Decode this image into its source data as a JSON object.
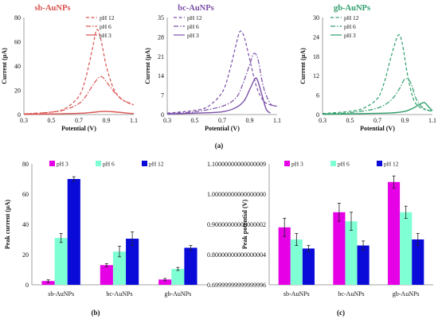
{
  "panel_labels": [
    "(a)",
    "(b)",
    "(c)"
  ],
  "chart_data": [
    {
      "type": "line",
      "title": "sb-AuNPs",
      "xlabel": "Potential (V)",
      "ylabel": "Current (μA)",
      "xlim": [
        0.3,
        1.1
      ],
      "ylim": [
        0,
        80
      ],
      "xticks": [
        0.3,
        0.5,
        0.7,
        0.9,
        1.1
      ],
      "yticks": [
        0,
        20,
        40,
        60,
        80
      ],
      "legend_position": "top-right",
      "color": "#d9534f",
      "series": [
        {
          "name": "pH 12",
          "dash": "dashed",
          "x": [
            0.3,
            0.5,
            0.6,
            0.7,
            0.75,
            0.8,
            0.83,
            0.86,
            0.9,
            0.95,
            1.0,
            1.05,
            1.1
          ],
          "y": [
            0.5,
            2,
            5,
            15,
            30,
            55,
            70,
            62,
            40,
            22,
            14,
            10,
            8
          ]
        },
        {
          "name": "pH 6",
          "dash": "dashdot",
          "x": [
            0.3,
            0.5,
            0.6,
            0.7,
            0.75,
            0.8,
            0.85,
            0.88,
            0.92,
            0.97,
            1.02,
            1.1
          ],
          "y": [
            0.5,
            2,
            4,
            9,
            15,
            24,
            31,
            30,
            24,
            17,
            12,
            8
          ]
        },
        {
          "name": "pH 3",
          "dash": "solid",
          "x": [
            0.3,
            0.5,
            0.7,
            0.8,
            0.86,
            0.9,
            0.95,
            1.0,
            1.05,
            1.1
          ],
          "y": [
            0.2,
            0.5,
            1,
            1.8,
            2.5,
            2.6,
            2.3,
            1.8,
            1.2,
            0.8
          ]
        }
      ]
    },
    {
      "type": "line",
      "title": "bc-AuNPs",
      "xlabel": "Potential (V)",
      "ylabel": "Current (μA)",
      "xlim": [
        0.3,
        1.1
      ],
      "ylim": [
        0,
        35
      ],
      "xticks": [
        0.3,
        0.5,
        0.7,
        0.9,
        1.1
      ],
      "yticks": [
        0,
        7,
        14,
        21,
        28,
        35
      ],
      "legend_position": "top-left",
      "color": "#7b4fa8",
      "series": [
        {
          "name": "pH 12",
          "dash": "dashed",
          "x": [
            0.3,
            0.5,
            0.6,
            0.7,
            0.75,
            0.8,
            0.83,
            0.86,
            0.9,
            0.95,
            1.0,
            1.05,
            1.1
          ],
          "y": [
            0.5,
            1.5,
            3,
            8,
            15,
            25,
            30,
            28,
            20,
            10,
            5,
            3.5,
            3
          ]
        },
        {
          "name": "pH 6",
          "dash": "dashdot",
          "x": [
            0.3,
            0.5,
            0.7,
            0.8,
            0.85,
            0.9,
            0.93,
            0.96,
            1.0,
            1.05,
            1.1
          ],
          "y": [
            0.3,
            1,
            3,
            6,
            11,
            18,
            22,
            20,
            10,
            4,
            3
          ]
        },
        {
          "name": "pH 3",
          "dash": "solid",
          "x": [
            0.3,
            0.5,
            0.7,
            0.8,
            0.86,
            0.9,
            0.94,
            0.96,
            0.99,
            1.02,
            1.05
          ],
          "y": [
            0.2,
            0.5,
            1,
            2.5,
            5,
            9,
            13,
            12,
            7,
            2,
            0.5
          ]
        }
      ]
    },
    {
      "type": "line",
      "title": "gb-AuNPs",
      "xlabel": "Potential (V)",
      "ylabel": "Current (μA)",
      "xlim": [
        0.3,
        1.1
      ],
      "ylim": [
        0,
        30
      ],
      "xticks": [
        0.3,
        0.5,
        0.7,
        0.9,
        1.1
      ],
      "yticks": [
        0,
        6,
        12,
        18,
        24,
        30
      ],
      "legend_position": "top-left",
      "color": "#2e9e6a",
      "series": [
        {
          "name": "pH 12",
          "dash": "dashed",
          "x": [
            0.3,
            0.5,
            0.6,
            0.7,
            0.75,
            0.8,
            0.85,
            0.88,
            0.92,
            0.96,
            1.0,
            1.05,
            1.1
          ],
          "y": [
            0.3,
            1,
            2,
            5,
            10,
            18,
            24.5,
            22,
            12,
            5,
            2.5,
            1.5,
            1
          ]
        },
        {
          "name": "pH 6",
          "dash": "dashdot",
          "x": [
            0.3,
            0.5,
            0.7,
            0.8,
            0.86,
            0.9,
            0.94,
            0.98,
            1.02,
            1.06,
            1.1
          ],
          "y": [
            0.2,
            0.6,
            2,
            4.5,
            8,
            11,
            10,
            5,
            2.5,
            1.5,
            1
          ]
        },
        {
          "name": "pH 3",
          "dash": "solid",
          "x": [
            0.3,
            0.6,
            0.8,
            0.9,
            0.96,
            1.0,
            1.04,
            1.07,
            1.1
          ],
          "y": [
            0.1,
            0.3,
            0.5,
            1,
            2,
            3,
            3.7,
            2.5,
            1.2
          ]
        }
      ]
    },
    {
      "type": "bar",
      "title": "",
      "xlabel": "",
      "ylabel": "Peak current (μA)",
      "ylim": [
        0,
        80
      ],
      "yticks": [
        0,
        20,
        40,
        60,
        80
      ],
      "categories": [
        "sb-AuNPs",
        "bc-AuNPs",
        "gb-AuNPs"
      ],
      "legend_position": "top",
      "error_bars": true,
      "series": [
        {
          "name": "pH 3",
          "color": "#e600e6",
          "values": [
            2.5,
            13,
            3.5
          ],
          "errors": [
            0.8,
            1,
            0.7
          ]
        },
        {
          "name": "pH 6",
          "color": "#7fffd4",
          "values": [
            31,
            22,
            10.5
          ],
          "errors": [
            3,
            3.5,
            1
          ]
        },
        {
          "name": "pH 12",
          "color": "#0a0ad9",
          "values": [
            70,
            30.5,
            24.5
          ],
          "errors": [
            1.5,
            4.5,
            1.5
          ]
        }
      ]
    },
    {
      "type": "bar",
      "title": "",
      "xlabel": "",
      "ylabel": "Peak potential (V)",
      "ylim": [
        0.7,
        1.1
      ],
      "yticks": [
        0.7,
        0.8,
        0.9,
        1.0,
        1.1
      ],
      "categories": [
        "sb-AuNPs",
        "bc-AuNPs",
        "gb-AuNPs"
      ],
      "legend_position": "top",
      "error_bars": true,
      "series": [
        {
          "name": "pH 3",
          "color": "#e600e6",
          "values": [
            0.89,
            0.94,
            1.04
          ],
          "errors": [
            0.03,
            0.03,
            0.02
          ]
        },
        {
          "name": "pH 6",
          "color": "#7fffd4",
          "values": [
            0.85,
            0.91,
            0.94
          ],
          "errors": [
            0.02,
            0.03,
            0.02
          ]
        },
        {
          "name": "pH 12",
          "color": "#0a0ad9",
          "values": [
            0.82,
            0.83,
            0.85
          ],
          "errors": [
            0.01,
            0.015,
            0.02
          ]
        }
      ]
    }
  ]
}
